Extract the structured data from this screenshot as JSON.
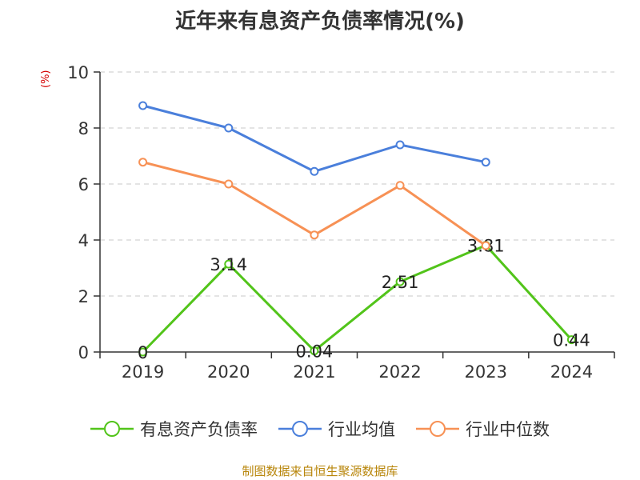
{
  "chart_data": {
    "type": "line",
    "title": "近年来有息资产负债率情况(%)",
    "ylabel": "(%)",
    "xlabel": "",
    "categories": [
      "2019",
      "2020",
      "2021",
      "2022",
      "2023",
      "2024"
    ],
    "ylim": [
      0,
      10
    ],
    "yticks": [
      0,
      2,
      4,
      6,
      8,
      10
    ],
    "grid": true,
    "legend_position": "bottom",
    "series": [
      {
        "name": "有息资产负债率",
        "color": "#52c41a",
        "values": [
          0,
          3.14,
          0.04,
          2.51,
          3.81,
          0.44
        ],
        "labels": [
          "0",
          "3.14",
          "0.04",
          "2.51",
          "3.81",
          "0.44"
        ]
      },
      {
        "name": "行业均值",
        "color": "#4a7fdb",
        "values": [
          8.8,
          8.0,
          6.45,
          7.4,
          6.78,
          null
        ]
      },
      {
        "name": "行业中位数",
        "color": "#f79155",
        "values": [
          6.78,
          6.0,
          4.18,
          5.95,
          3.8,
          null
        ]
      }
    ]
  },
  "footer": "制图数据来自恒生聚源数据库"
}
